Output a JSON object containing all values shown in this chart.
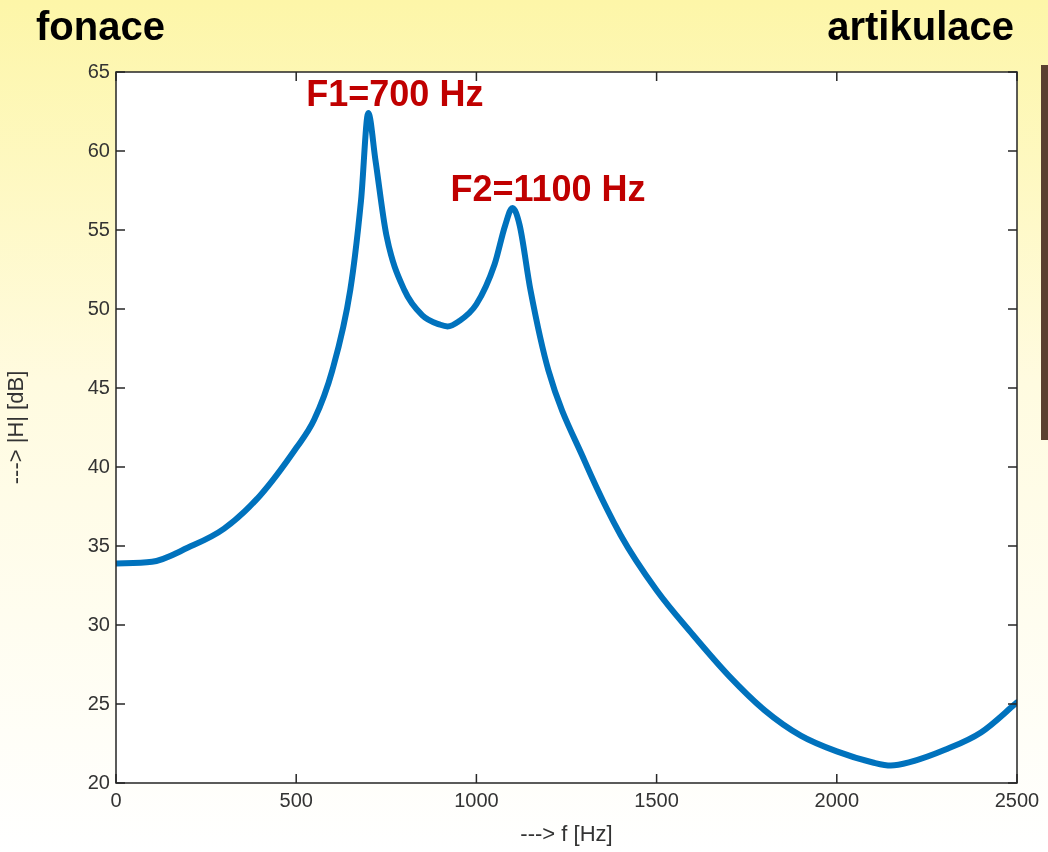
{
  "chart_data": {
    "type": "line",
    "xlabel": "---> f [Hz]",
    "ylabel": "---> |H| [dB]",
    "annotations": [
      "fonace",
      "artikulace",
      {
        "text": "F1=700 Hz",
        "x": 700,
        "y": 62.4
      },
      {
        "text": "F2=1100 Hz",
        "x": 1100,
        "y": 56.4
      }
    ],
    "xlim": [
      0,
      2500
    ],
    "xticks": [
      0,
      500,
      1000,
      1500,
      2000,
      2500
    ],
    "ylim": [
      20,
      65
    ],
    "yticks": [
      20,
      25,
      30,
      35,
      40,
      45,
      50,
      55,
      60,
      65
    ],
    "grid": false,
    "legend": false,
    "marker": "none",
    "line_style": "solid",
    "series": [
      {
        "color": "#0072bd",
        "x": [
          0,
          100,
          200,
          300,
          400,
          500,
          550,
          600,
          650,
          680,
          700,
          720,
          750,
          800,
          850,
          900,
          920,
          950,
          1000,
          1050,
          1080,
          1100,
          1120,
          1150,
          1200,
          1300,
          1400,
          1500,
          1600,
          1700,
          1800,
          1900,
          2000,
          2100,
          2150,
          2200,
          2300,
          2400,
          2500
        ],
        "values": [
          33.9,
          34.0,
          34.9,
          36.1,
          38.2,
          41.2,
          43.0,
          46.1,
          51.2,
          56.9,
          62.4,
          59.4,
          54.7,
          51.2,
          49.6,
          49.0,
          48.9,
          49.2,
          50.3,
          52.8,
          55.3,
          56.4,
          55.3,
          51.2,
          46.1,
          40.4,
          35.7,
          32.2,
          29.4,
          26.8,
          24.6,
          23.0,
          22.0,
          21.3,
          21.1,
          21.3,
          22.1,
          23.2,
          25.1
        ]
      }
    ]
  }
}
